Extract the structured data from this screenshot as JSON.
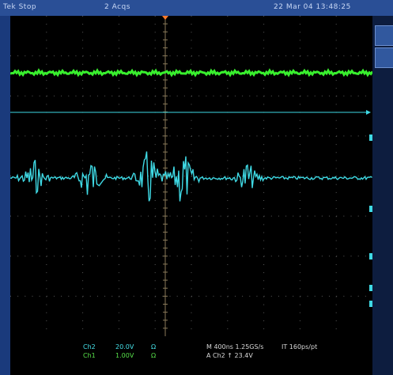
{
  "top_bar": {
    "left_text": "Tek Stop",
    "center_text": "2 Acqs",
    "right_text": "22 Mar 04 13:48:25"
  },
  "bottom_bar": {
    "ch2_label": "Ch2",
    "ch2_scale": "20.0V",
    "ch2_unit": "Ω",
    "ch1_label": "Ch1",
    "ch1_scale": "1.00V",
    "ch1_unit": "Ω",
    "timebase_text": "M 400ns 1.25GS/s",
    "trigger_text": "IT 160ps/pt",
    "trigger_level_text": "A Ch2 ↑ 23.4V"
  },
  "colors": {
    "background": "#000000",
    "bezel": "#1c3a78",
    "graticule": "#5a5a5a",
    "channel1": "#39ef2e",
    "channel2": "#3fd9e4",
    "trigger_marker": "#ff7a2a"
  }
}
